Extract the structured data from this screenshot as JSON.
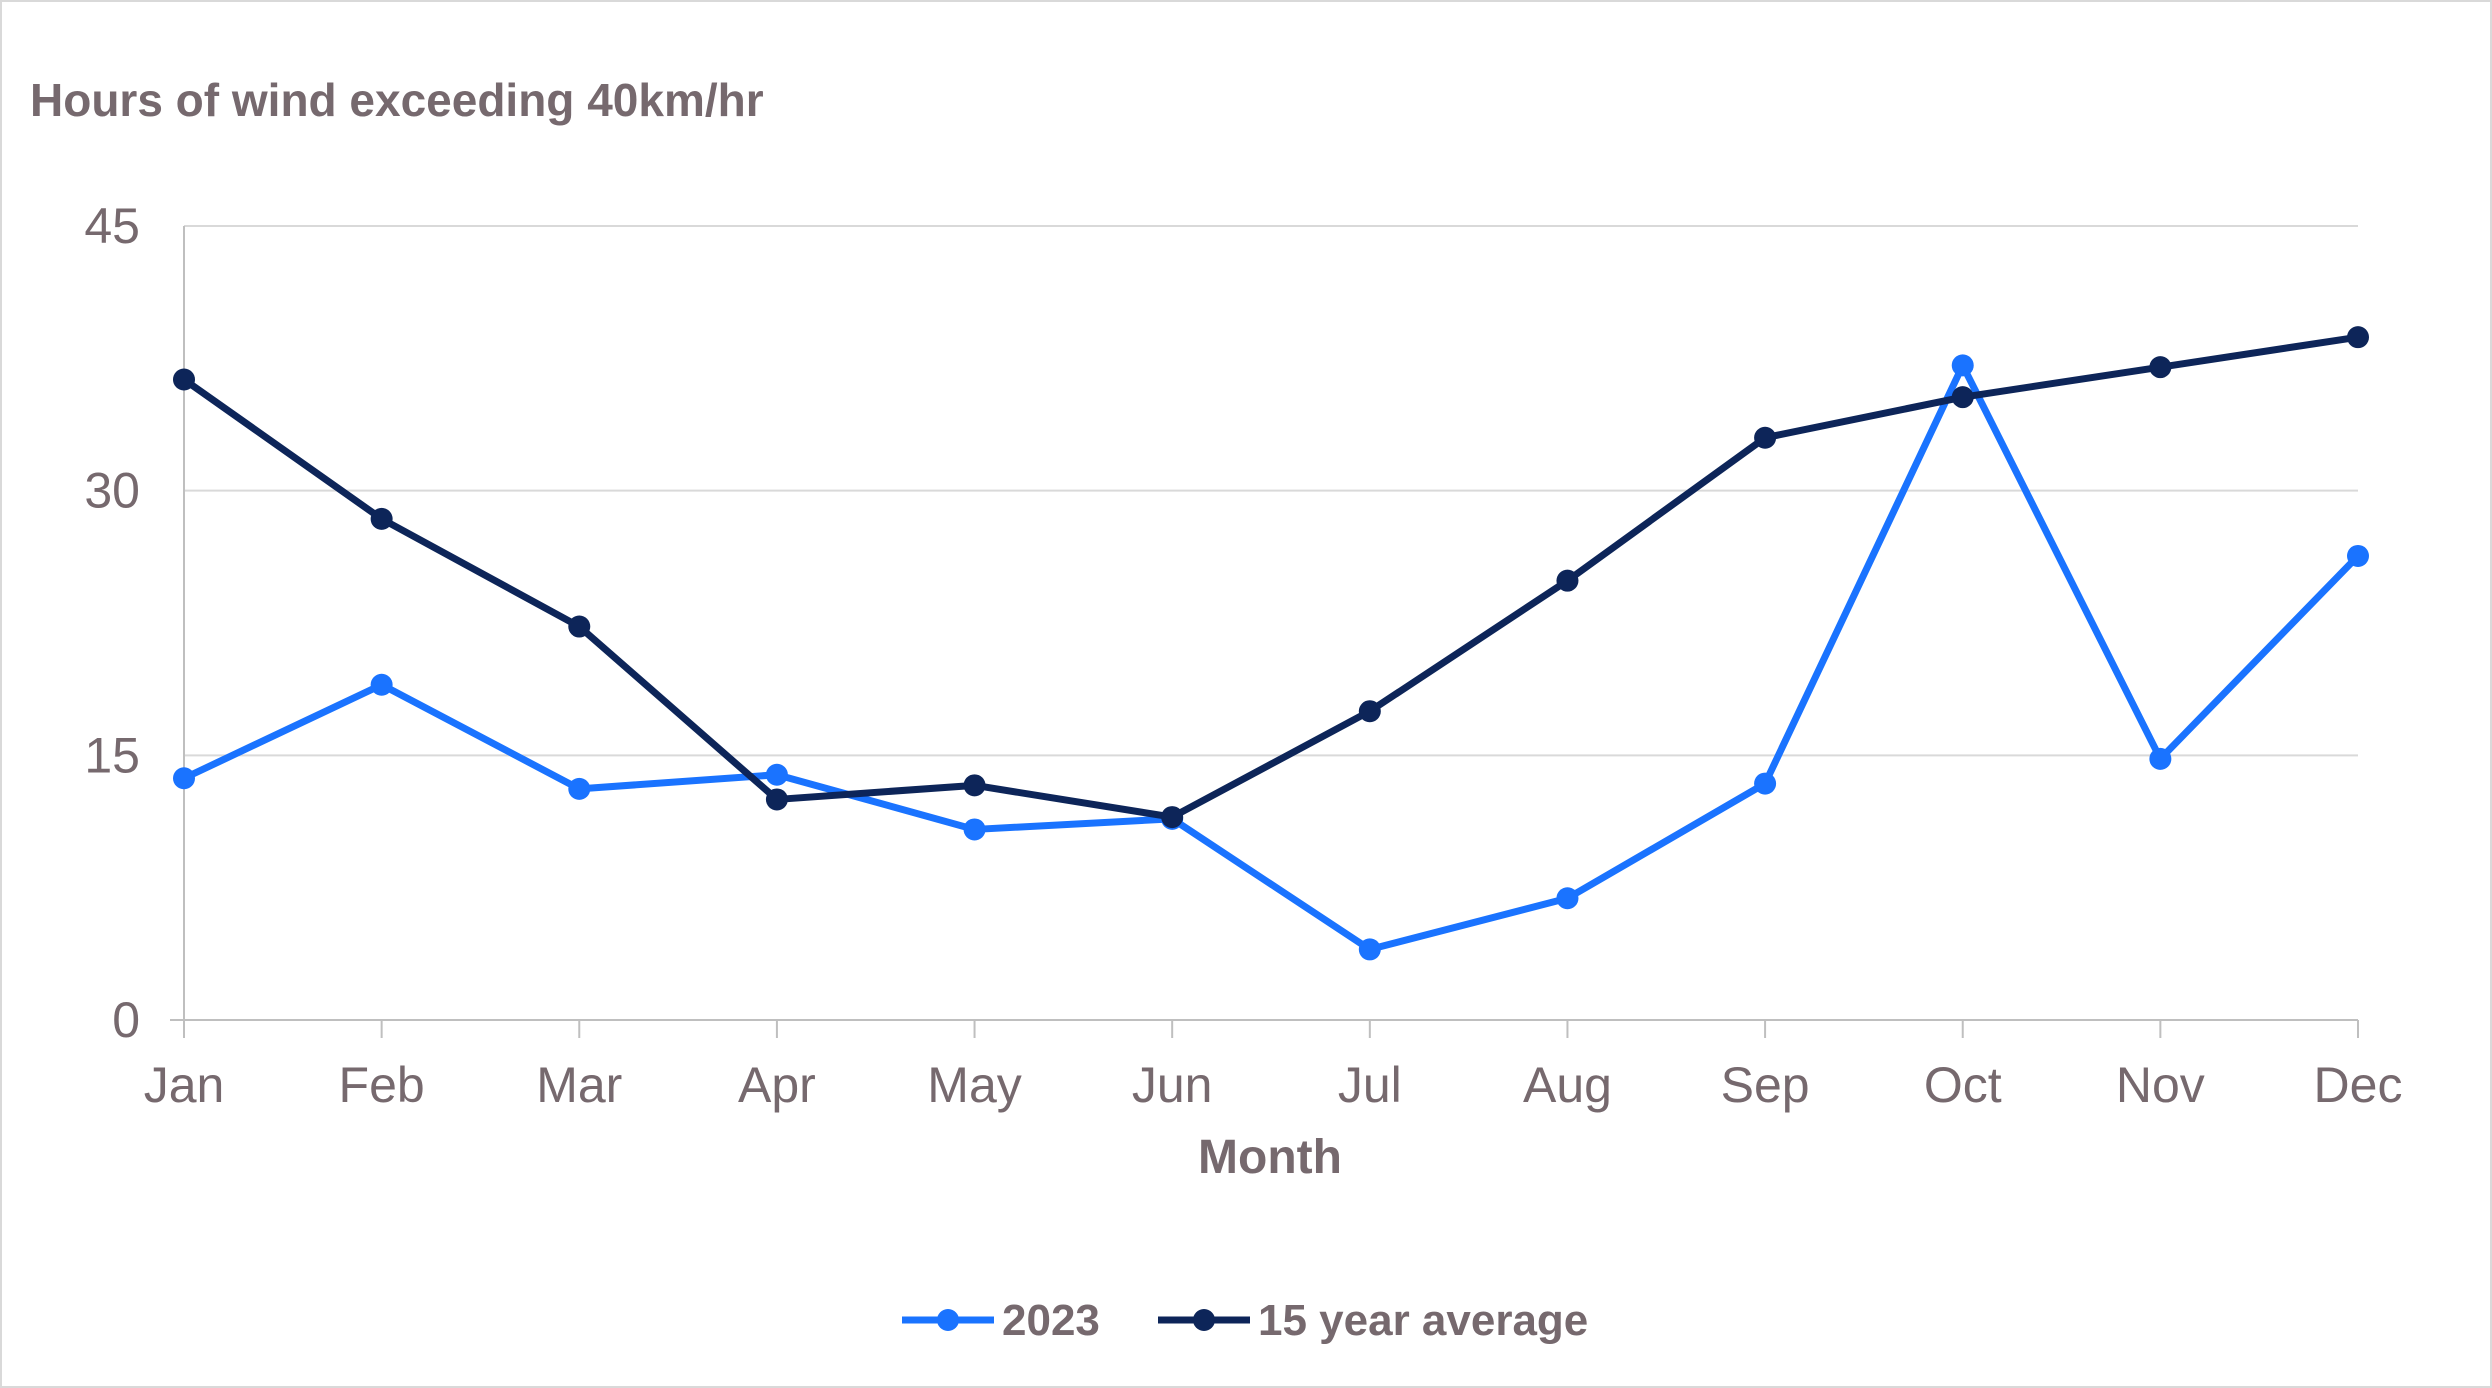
{
  "chart_data": {
    "type": "line",
    "title": "",
    "ylabel": "Hours of wind exceeding 40km/hr",
    "xlabel": "Month",
    "categories": [
      "Jan",
      "Feb",
      "Mar",
      "Apr",
      "May",
      "Jun",
      "Jul",
      "Aug",
      "Sep",
      "Oct",
      "Nov",
      "Dec"
    ],
    "ylim": [
      0,
      45
    ],
    "yticks": [
      "0",
      "15",
      "30",
      "45"
    ],
    "grid": true,
    "legend_position": "bottom",
    "series": [
      {
        "name": "2023",
        "color": "#1a73ff",
        "values": [
          13.7,
          19.0,
          13.1,
          13.9,
          10.8,
          11.4,
          4.0,
          6.9,
          13.4,
          37.1,
          14.8,
          26.3
        ]
      },
      {
        "name": "15 year average",
        "color": "#0d2559",
        "values": [
          36.3,
          28.4,
          22.3,
          12.5,
          13.3,
          11.5,
          17.5,
          24.9,
          33.0,
          35.3,
          37.0,
          38.7
        ]
      }
    ]
  }
}
